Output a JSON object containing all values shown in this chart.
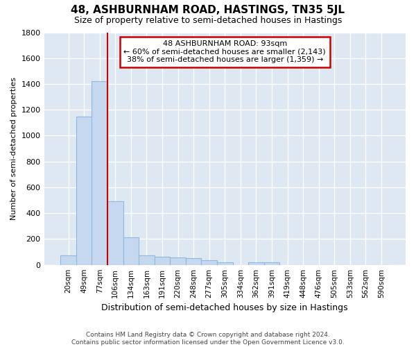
{
  "title": "48, ASHBURNHAM ROAD, HASTINGS, TN35 5JL",
  "subtitle": "Size of property relative to semi-detached houses in Hastings",
  "xlabel": "Distribution of semi-detached houses by size in Hastings",
  "ylabel": "Number of semi-detached properties",
  "footer_line1": "Contains HM Land Registry data © Crown copyright and database right 2024.",
  "footer_line2": "Contains public sector information licensed under the Open Government Licence v3.0.",
  "categories": [
    "20sqm",
    "49sqm",
    "77sqm",
    "106sqm",
    "134sqm",
    "163sqm",
    "191sqm",
    "220sqm",
    "248sqm",
    "277sqm",
    "305sqm",
    "334sqm",
    "362sqm",
    "391sqm",
    "419sqm",
    "448sqm",
    "476sqm",
    "505sqm",
    "533sqm",
    "562sqm",
    "590sqm"
  ],
  "values": [
    75,
    1150,
    1420,
    490,
    215,
    75,
    65,
    55,
    50,
    35,
    20,
    0,
    20,
    20,
    0,
    0,
    0,
    0,
    0,
    0,
    0
  ],
  "bar_color": "#c5d8ef",
  "bar_edge_color": "#8fb8dc",
  "axes_bg_color": "#dde8f3",
  "grid_color": "#ffffff",
  "fig_bg_color": "#ffffff",
  "property_label": "48 ASHBURNHAM ROAD: 93sqm",
  "annotation_line1": "← 60% of semi-detached houses are smaller (2,143)",
  "annotation_line2": "38% of semi-detached houses are larger (1,359) →",
  "annotation_box_color": "#ffffff",
  "annotation_box_edge": "#cc0000",
  "property_line_color": "#cc0000",
  "property_line_x": 2.5,
  "ylim": [
    0,
    1800
  ],
  "yticks": [
    0,
    200,
    400,
    600,
    800,
    1000,
    1200,
    1400,
    1600,
    1800
  ]
}
